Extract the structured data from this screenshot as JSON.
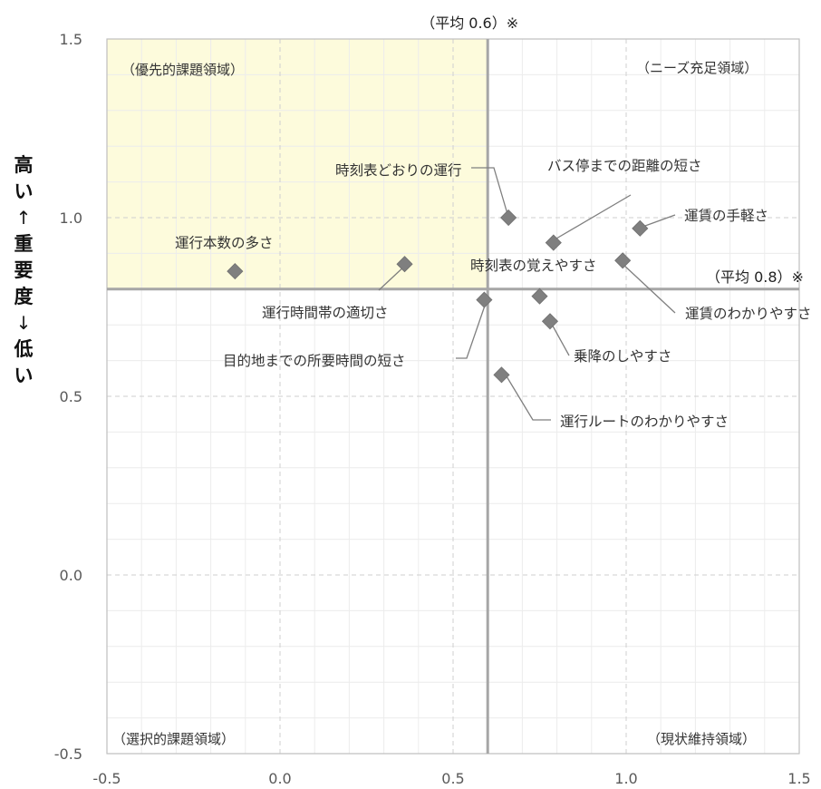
{
  "chart_data": {
    "type": "scatter",
    "title": "",
    "xlabel": "",
    "ylabel_parts": [
      "高い",
      "↑",
      "重要度",
      "↓",
      "低い"
    ],
    "xlim": [
      -0.5,
      1.5
    ],
    "ylim": [
      -0.5,
      1.5
    ],
    "x_ticks": [
      "-0.5",
      "0.0",
      "0.5",
      "1.0",
      "1.5"
    ],
    "y_ticks": [
      "-0.5",
      "0.0",
      "0.5",
      "1.0",
      "1.5"
    ],
    "grid": true,
    "marker_color": "#7f7f7f",
    "highlight_color": "#fdfbdc",
    "avg_x": {
      "value": 0.6,
      "label": "（平均 0.6）※"
    },
    "avg_y": {
      "value": 0.8,
      "label": "（平均 0.8）※"
    },
    "quadrants": {
      "top_left": "（優先的課題領域）",
      "top_right": "（ニーズ充足領域）",
      "bottom_left": "（選択的課題領域）",
      "bottom_right": "（現状維持領域）"
    },
    "points": [
      {
        "label": "運行本数の多さ",
        "x": -0.13,
        "y": 0.85
      },
      {
        "label": "運行時間帯の適切さ",
        "x": 0.36,
        "y": 0.87
      },
      {
        "label": "時刻表どおりの運行",
        "x": 0.66,
        "y": 1.0
      },
      {
        "label": "バス停までの距離の短さ",
        "x": 0.79,
        "y": 0.93
      },
      {
        "label": "運賃の手軽さ",
        "x": 1.04,
        "y": 0.97
      },
      {
        "label": "時刻表の覚えやすさ",
        "x": 0.75,
        "y": 0.78
      },
      {
        "label": "運賃のわかりやすさ",
        "x": 0.99,
        "y": 0.88
      },
      {
        "label": "目的地までの所要時間の短さ",
        "x": 0.59,
        "y": 0.77
      },
      {
        "label": "乗降のしやすさ",
        "x": 0.78,
        "y": 0.71
      },
      {
        "label": "運行ルートのわかりやすさ",
        "x": 0.64,
        "y": 0.56
      }
    ]
  }
}
